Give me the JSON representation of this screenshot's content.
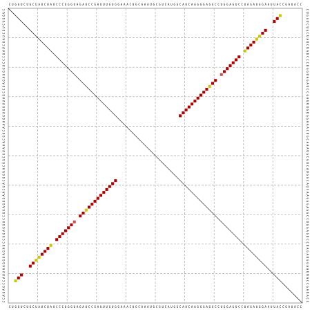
{
  "sequence": "CUGGUCUGCUAUCUAUCCCUGGUAGAUCCGAUUUGUGGAAACUGCAAAUGCGUCAUGGCAUCAAGGGAGGCCUGGAGUCCUAGAUGGAAUUACCGAUACC",
  "pairs": [
    [
      2,
      92,
      "#c8c800"
    ],
    [
      3,
      91,
      "#b00000"
    ],
    [
      4,
      90,
      "#b00000"
    ],
    [
      7,
      87,
      "#b00000"
    ],
    [
      8,
      86,
      "#b00000"
    ],
    [
      9,
      85,
      "#c8c800"
    ],
    [
      10,
      84,
      "#c8c800"
    ],
    [
      11,
      83,
      "#b00000"
    ],
    [
      12,
      82,
      "#b00000"
    ],
    [
      13,
      81,
      "#b00000"
    ],
    [
      14,
      80,
      "#c8c800"
    ],
    [
      16,
      78,
      "#b00000"
    ],
    [
      17,
      77,
      "#b00000"
    ],
    [
      18,
      76,
      "#b00000"
    ],
    [
      19,
      75,
      "#b00000"
    ],
    [
      20,
      74,
      "#b00000"
    ],
    [
      21,
      73,
      "#b00000"
    ],
    [
      22,
      72,
      "#d05050"
    ],
    [
      24,
      70,
      "#b00000"
    ],
    [
      25,
      69,
      "#b00000"
    ],
    [
      26,
      68,
      "#c8c800"
    ],
    [
      27,
      67,
      "#b00000"
    ],
    [
      28,
      66,
      "#b00000"
    ],
    [
      29,
      65,
      "#b00000"
    ],
    [
      30,
      64,
      "#b00000"
    ],
    [
      31,
      63,
      "#b00000"
    ],
    [
      32,
      62,
      "#b00000"
    ],
    [
      33,
      61,
      "#b00000"
    ],
    [
      34,
      60,
      "#b00000"
    ],
    [
      35,
      59,
      "#b00000"
    ],
    [
      36,
      58,
      "#b00000"
    ]
  ]
}
